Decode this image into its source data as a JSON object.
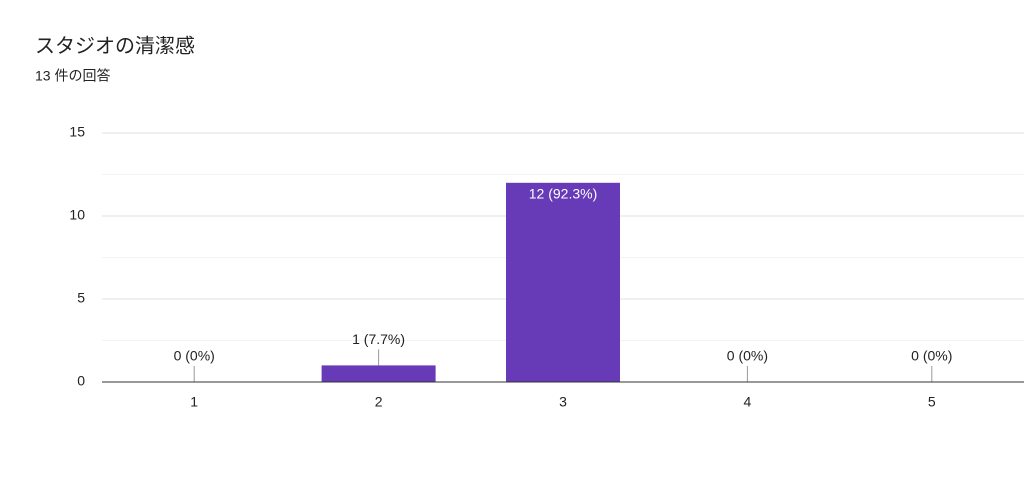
{
  "chart_data": {
    "type": "bar",
    "title": "スタジオの清潔感",
    "subtitle": "13 件の回答",
    "categories": [
      "1",
      "2",
      "3",
      "4",
      "5"
    ],
    "values": [
      0,
      1,
      12,
      0,
      0
    ],
    "value_labels": [
      "0 (0%)",
      "1 (7.7%)",
      "12 (92.3%)",
      "0 (0%)",
      "0 (0%)"
    ],
    "color": "#673ab7",
    "ylim": [
      0,
      15
    ],
    "yticks": [
      0,
      5,
      10,
      15
    ],
    "y_minor_ticks": [
      2.5,
      7.5,
      12.5
    ],
    "grid": true
  }
}
